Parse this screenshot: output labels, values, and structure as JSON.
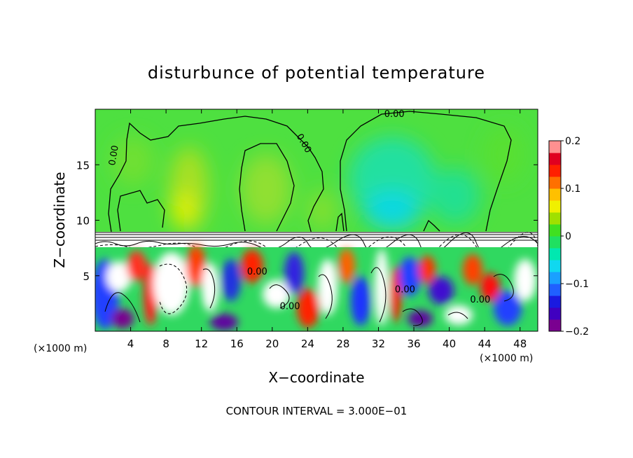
{
  "chart_data": {
    "type": "heatmap",
    "title": "disturbunce of potential temperature",
    "xlabel": "X−coordinate",
    "ylabel": "Z−coordinate",
    "x_unit": "(×1000 m)",
    "y_unit": "(×1000 m)",
    "footer": "CONTOUR INTERVAL = 3.000E−01",
    "xlim": [
      0,
      50
    ],
    "ylim": [
      0,
      20
    ],
    "x_ticks": [
      4,
      8,
      12,
      16,
      20,
      24,
      28,
      32,
      36,
      40,
      44,
      48
    ],
    "y_ticks": [
      5,
      10,
      15
    ],
    "colorbar": {
      "min": -0.2,
      "max": 0.2,
      "ticks": [
        "0.2",
        "0.1",
        "0",
        "−0.1",
        "−0.2"
      ],
      "colors": [
        "#7a0090",
        "#4000c0",
        "#1a1ae0",
        "#2060ff",
        "#1aa0ff",
        "#10d8f0",
        "#00e8b0",
        "#20e060",
        "#40e020",
        "#a0e000",
        "#f0f000",
        "#ffc000",
        "#ff7000",
        "#ff2000",
        "#e00020",
        "#ff9090"
      ]
    },
    "contour_labels": [
      {
        "x": 33.8,
        "y": 19.3,
        "text": "0.00"
      },
      {
        "x": 2.4,
        "y": 15.8,
        "text": "0.00"
      },
      {
        "x": 23.3,
        "y": 16.8,
        "text": "0.00"
      },
      {
        "x": 18.3,
        "y": 5.1,
        "text": "0.00"
      },
      {
        "x": 22.0,
        "y": 2.0,
        "text": "0.00"
      },
      {
        "x": 35.0,
        "y": 3.5,
        "text": "0.00"
      },
      {
        "x": 43.5,
        "y": 2.6,
        "text": "0.00"
      }
    ],
    "regions": [
      {
        "x0": 0,
        "x1": 50,
        "y0": 9.3,
        "y1": 20,
        "description": "upper layer, values near 0"
      },
      {
        "x0": 0,
        "x1": 50,
        "y0": 8.1,
        "y1": 9.3,
        "description": "white band with dense contours"
      },
      {
        "x0": 0,
        "x1": 50,
        "y0": 0,
        "y1": 8.1,
        "description": "lower layer, strong +/- eddies"
      }
    ]
  }
}
